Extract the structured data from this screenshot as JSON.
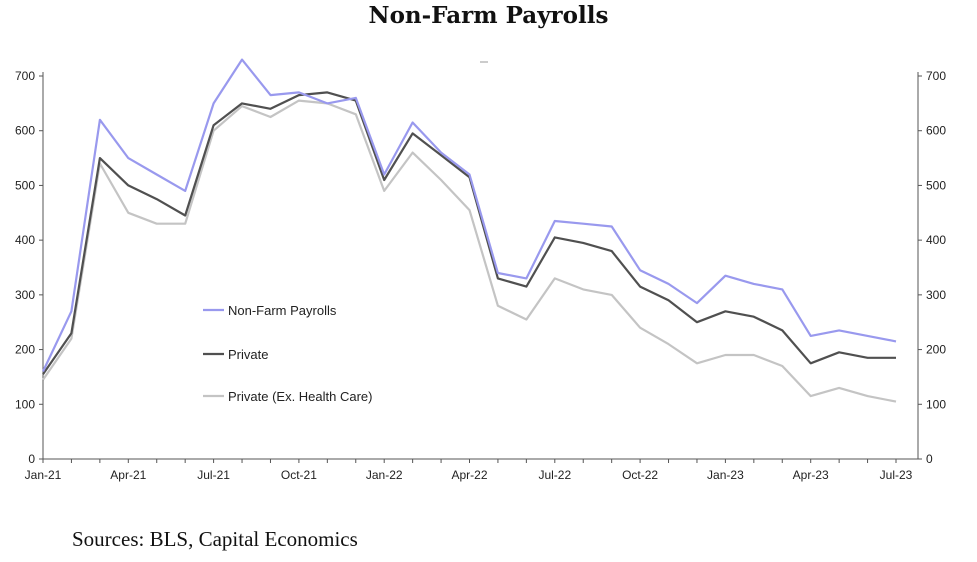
{
  "chart_data": {
    "type": "line",
    "title": "Non-Farm Payrolls",
    "source": "Sources: BLS, Capital Economics",
    "x_labels": [
      "Jan-21",
      "Apr-21",
      "Jul-21",
      "Oct-21",
      "Jan-22",
      "Apr-22",
      "Jul-22",
      "Oct-22",
      "Jan-23",
      "Apr-23",
      "Jul-23"
    ],
    "y_ticks": [
      0,
      100,
      200,
      300,
      400,
      500,
      600,
      700
    ],
    "ylim": [
      0,
      700
    ],
    "legend_position": "center-left",
    "grid": false,
    "series": [
      {
        "name": "Non-Farm Payrolls",
        "color": "#9999ee",
        "values": [
          160,
          270,
          620,
          550,
          520,
          490,
          650,
          730,
          665,
          670,
          650,
          660,
          520,
          615,
          560,
          520,
          340,
          330,
          435,
          430,
          425,
          345,
          320,
          285,
          335,
          320,
          310,
          225,
          235,
          225,
          215
        ]
      },
      {
        "name": "Private",
        "color": "#505050",
        "values": [
          155,
          230,
          550,
          500,
          475,
          445,
          610,
          650,
          640,
          665,
          670,
          655,
          510,
          595,
          555,
          515,
          330,
          315,
          405,
          395,
          380,
          315,
          290,
          250,
          270,
          260,
          235,
          175,
          195,
          185,
          185
        ]
      },
      {
        "name": "Private (Ex. Health Care)",
        "color": "#c4c4c4",
        "values": [
          145,
          220,
          540,
          450,
          430,
          430,
          600,
          645,
          625,
          655,
          650,
          630,
          490,
          560,
          510,
          455,
          280,
          255,
          330,
          310,
          300,
          240,
          210,
          175,
          190,
          190,
          170,
          115,
          130,
          115,
          105
        ]
      }
    ]
  }
}
